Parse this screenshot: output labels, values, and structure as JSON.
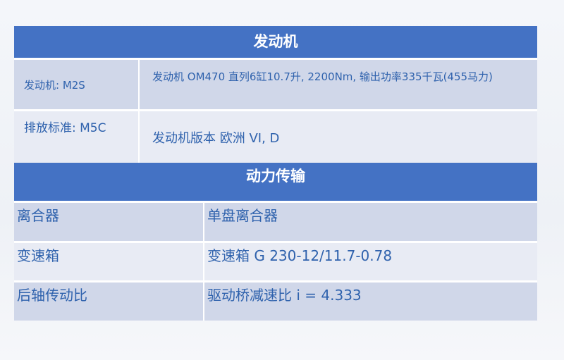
{
  "sections": [
    {
      "title": "发动机",
      "rows": [
        {
          "label": "发动机: M2S",
          "value": "发动机 OM470 直列6缸10.7升, 2200Nm, 输出功率335千瓦(455马力)"
        },
        {
          "label": "排放标准: M5C",
          "value": "发动机版本 欧洲 VI, D"
        }
      ]
    },
    {
      "title": "动力传输",
      "rows": [
        {
          "label": "离合器",
          "value": "单盘离合器"
        },
        {
          "label": "变速箱",
          "value": "变速箱 G 230-12/11.7-0.78"
        },
        {
          "label": "后轴传动比",
          "value": "驱动桥减速比 i = 4.333"
        }
      ]
    }
  ],
  "colors": {
    "header": "#4472c4",
    "text": "#2f62ad",
    "row_dark": "#d0d7e9",
    "row_light": "#e8ebf4"
  }
}
